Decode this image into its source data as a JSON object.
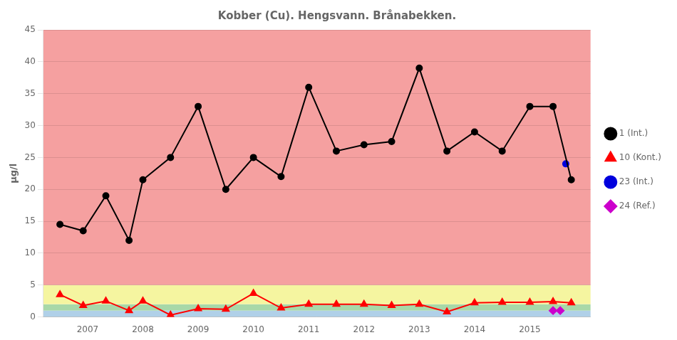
{
  "chart_data": {
    "type": "line",
    "title": "Kobber (Cu). Hengsvann. Brånabekken.",
    "y_label": "µg/l",
    "xlim": [
      2006.2,
      2016.1
    ],
    "xticks": [
      2007,
      2008,
      2009,
      2010,
      2011,
      2012,
      2013,
      2014,
      2015
    ],
    "ylim": [
      0,
      45
    ],
    "yticks": [
      0,
      5,
      10,
      15,
      20,
      25,
      30,
      35,
      40,
      45
    ],
    "grid": "y",
    "legend": "right",
    "bands": [
      {
        "from": 0,
        "to": 1,
        "color": "#b0d0e8"
      },
      {
        "from": 1,
        "to": 2,
        "color": "#a8d8a8"
      },
      {
        "from": 2,
        "to": 5,
        "color": "#f5f5a0"
      },
      {
        "from": 5,
        "to": 45,
        "color": "#f5a0a0"
      }
    ],
    "series": [
      {
        "name": "1 (Int.)",
        "color": "#000000",
        "marker": "circle",
        "line_style": "solid",
        "x": [
          2006.5,
          2006.92,
          2007.33,
          2007.75,
          2008.0,
          2008.5,
          2009.0,
          2009.5,
          2010.0,
          2010.5,
          2011.0,
          2011.5,
          2012.0,
          2012.5,
          2013.0,
          2013.5,
          2014.0,
          2014.5,
          2015.0,
          2015.42,
          2015.75
        ],
        "values": [
          14.5,
          13.5,
          19.0,
          12.0,
          21.5,
          25.0,
          33.0,
          20.0,
          25.0,
          22.0,
          36.0,
          26.0,
          27.0,
          27.5,
          39.0,
          26.0,
          29.0,
          26.0,
          33.0,
          33.0,
          21.5
        ]
      },
      {
        "name": "10 (Kont.)",
        "color": "#ff0000",
        "marker": "triangle",
        "line_style": "solid",
        "x": [
          2006.5,
          2006.92,
          2007.33,
          2007.75,
          2008.0,
          2008.5,
          2009.0,
          2009.5,
          2010.0,
          2010.5,
          2011.0,
          2011.5,
          2012.0,
          2012.5,
          2013.0,
          2013.5,
          2014.0,
          2014.5,
          2015.0,
          2015.42,
          2015.75
        ],
        "values": [
          3.5,
          1.8,
          2.5,
          1.0,
          2.5,
          0.3,
          1.3,
          1.2,
          3.7,
          1.4,
          2.0,
          2.0,
          2.0,
          1.8,
          2.0,
          0.8,
          2.2,
          2.3,
          2.3,
          2.4,
          2.2
        ]
      },
      {
        "name": "23 (Int.)",
        "color": "#0000dd",
        "marker": "circle",
        "line_style": "solid",
        "x": [
          2015.65
        ],
        "values": [
          24.0
        ]
      },
      {
        "name": "24 (Ref.)",
        "color": "#cc00cc",
        "marker": "diamond",
        "line_style": "solid",
        "x": [
          2015.42,
          2015.55
        ],
        "values": [
          1.0,
          1.0
        ]
      }
    ]
  }
}
